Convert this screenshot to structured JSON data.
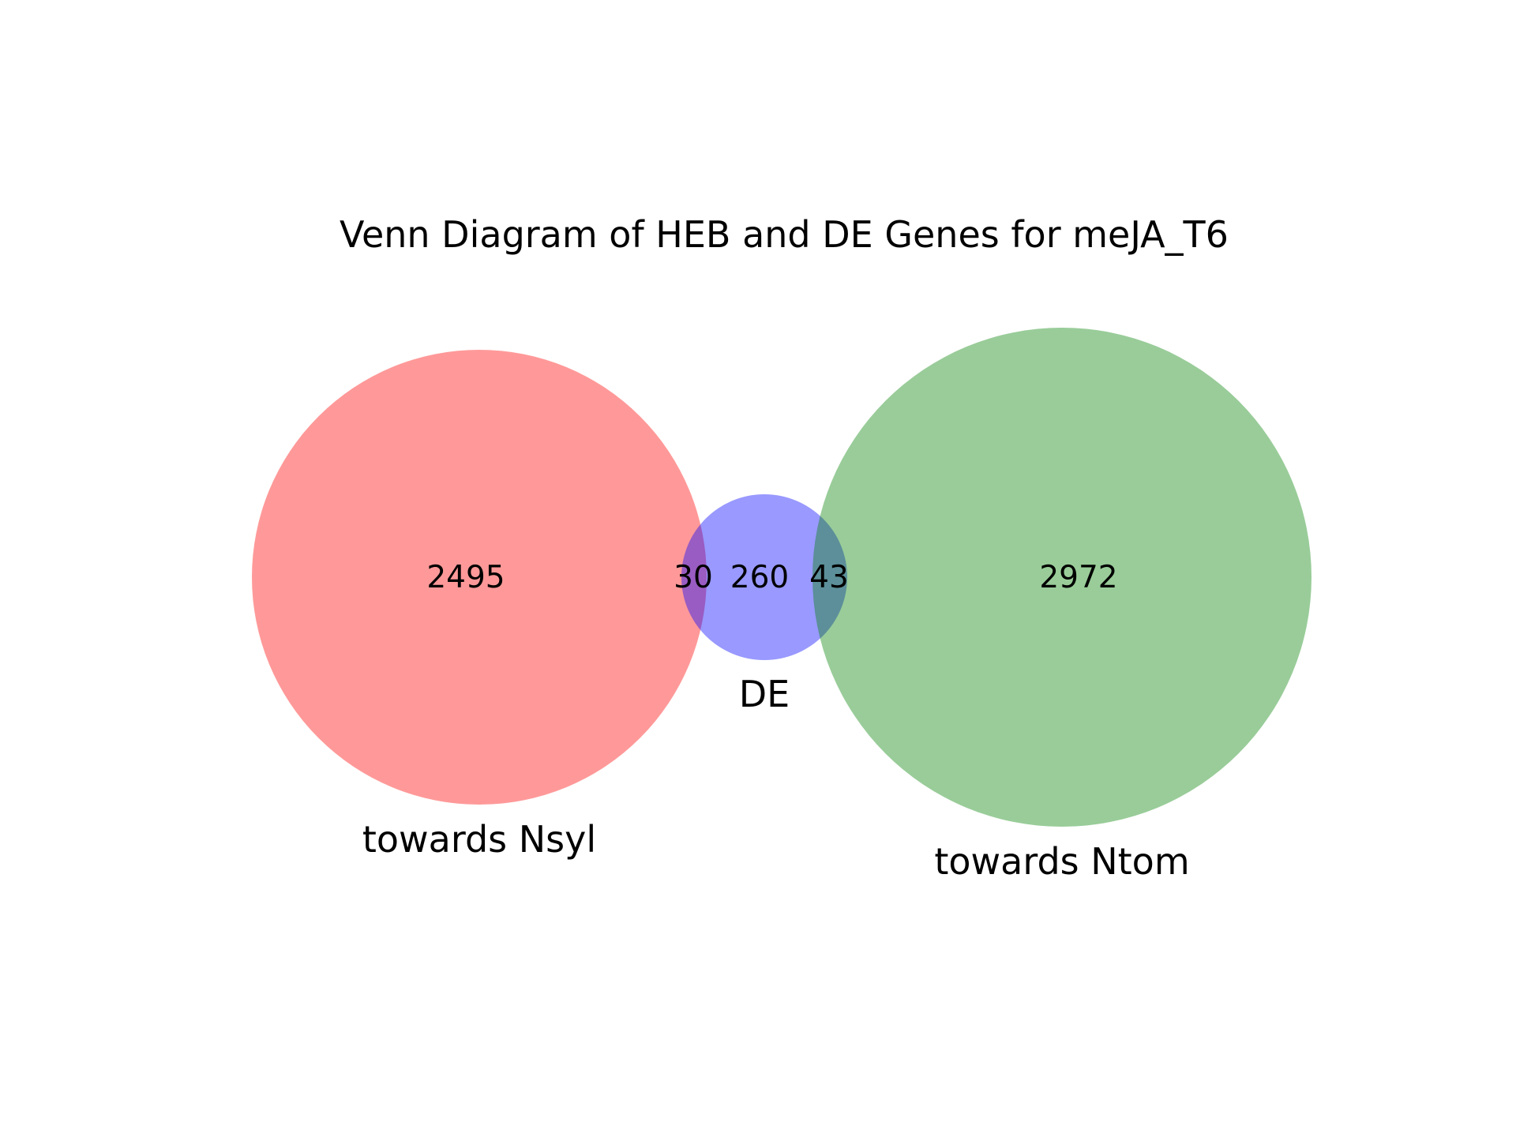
{
  "title": "Venn Diagram of HEB and DE Genes for meJA_T6",
  "sets": {
    "nsyl": {
      "label": "towards Nsyl",
      "color": "#ff0000"
    },
    "de": {
      "label": "DE",
      "color": "#0000ff"
    },
    "ntom": {
      "label": "towards Ntom",
      "color": "#008000"
    }
  },
  "region_counts": {
    "nsyl_only": "2495",
    "nsyl_and_de": "30",
    "de_only": "260",
    "de_and_ntom": "43",
    "ntom_only": "2972"
  },
  "style": {
    "fill_opacity": 0.4,
    "background": "#ffffff"
  }
}
